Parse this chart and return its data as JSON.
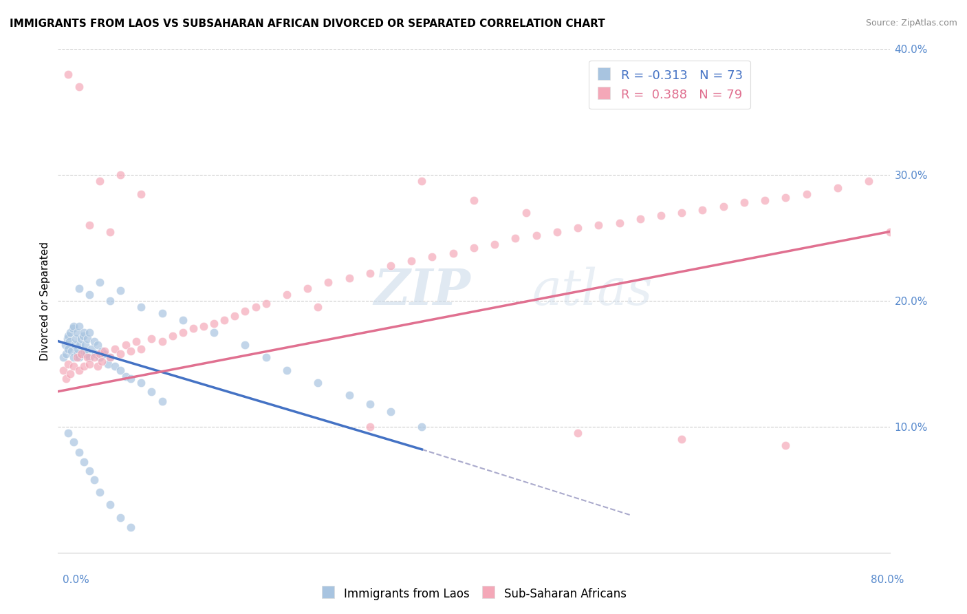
{
  "title": "IMMIGRANTS FROM LAOS VS SUBSAHARAN AFRICAN DIVORCED OR SEPARATED CORRELATION CHART",
  "source": "Source: ZipAtlas.com",
  "ylabel": "Divorced or Separated",
  "legend_labels": [
    "Immigrants from Laos",
    "Sub-Saharan Africans"
  ],
  "blue_R": "-0.313",
  "blue_N": "73",
  "pink_R": "0.388",
  "pink_N": "79",
  "blue_color": "#a8c4e0",
  "pink_color": "#f4a8b8",
  "blue_line_color": "#4472c4",
  "pink_line_color": "#e07090",
  "watermark_zip": "ZIP",
  "watermark_atlas": "atlas",
  "xlim": [
    0.0,
    0.8
  ],
  "ylim": [
    0.0,
    0.4
  ],
  "yticks": [
    0.1,
    0.2,
    0.3,
    0.4
  ],
  "blue_trend_x0": 0.0,
  "blue_trend_y0": 0.168,
  "blue_trend_x1": 0.35,
  "blue_trend_y1": 0.082,
  "blue_trend_dash_x1": 0.55,
  "blue_trend_dash_y1": 0.03,
  "pink_trend_x0": 0.0,
  "pink_trend_y0": 0.128,
  "pink_trend_x1": 0.8,
  "pink_trend_y1": 0.255,
  "blue_scatter_x": [
    0.005,
    0.007,
    0.008,
    0.009,
    0.01,
    0.01,
    0.011,
    0.012,
    0.013,
    0.014,
    0.015,
    0.015,
    0.016,
    0.017,
    0.018,
    0.018,
    0.019,
    0.02,
    0.02,
    0.021,
    0.022,
    0.023,
    0.024,
    0.025,
    0.025,
    0.026,
    0.027,
    0.028,
    0.03,
    0.03,
    0.032,
    0.035,
    0.036,
    0.038,
    0.04,
    0.042,
    0.045,
    0.048,
    0.05,
    0.055,
    0.06,
    0.065,
    0.07,
    0.08,
    0.09,
    0.1,
    0.02,
    0.03,
    0.04,
    0.05,
    0.06,
    0.08,
    0.1,
    0.12,
    0.15,
    0.18,
    0.2,
    0.22,
    0.25,
    0.28,
    0.3,
    0.32,
    0.35,
    0.01,
    0.015,
    0.02,
    0.025,
    0.03,
    0.035,
    0.04,
    0.05,
    0.06,
    0.07
  ],
  "blue_scatter_y": [
    0.155,
    0.165,
    0.158,
    0.17,
    0.162,
    0.172,
    0.168,
    0.175,
    0.16,
    0.178,
    0.155,
    0.18,
    0.165,
    0.17,
    0.158,
    0.175,
    0.162,
    0.155,
    0.18,
    0.165,
    0.17,
    0.158,
    0.172,
    0.16,
    0.175,
    0.165,
    0.158,
    0.17,
    0.155,
    0.175,
    0.162,
    0.168,
    0.158,
    0.165,
    0.155,
    0.16,
    0.158,
    0.15,
    0.155,
    0.148,
    0.145,
    0.14,
    0.138,
    0.135,
    0.128,
    0.12,
    0.21,
    0.205,
    0.215,
    0.2,
    0.208,
    0.195,
    0.19,
    0.185,
    0.175,
    0.165,
    0.155,
    0.145,
    0.135,
    0.125,
    0.118,
    0.112,
    0.1,
    0.095,
    0.088,
    0.08,
    0.072,
    0.065,
    0.058,
    0.048,
    0.038,
    0.028,
    0.02
  ],
  "pink_scatter_x": [
    0.005,
    0.008,
    0.01,
    0.012,
    0.015,
    0.018,
    0.02,
    0.022,
    0.025,
    0.028,
    0.03,
    0.035,
    0.038,
    0.04,
    0.042,
    0.045,
    0.05,
    0.055,
    0.06,
    0.065,
    0.07,
    0.075,
    0.08,
    0.09,
    0.1,
    0.11,
    0.12,
    0.13,
    0.14,
    0.15,
    0.16,
    0.17,
    0.18,
    0.19,
    0.2,
    0.22,
    0.24,
    0.26,
    0.28,
    0.3,
    0.32,
    0.34,
    0.36,
    0.38,
    0.4,
    0.42,
    0.44,
    0.46,
    0.48,
    0.5,
    0.52,
    0.54,
    0.56,
    0.58,
    0.6,
    0.62,
    0.64,
    0.66,
    0.68,
    0.7,
    0.72,
    0.75,
    0.78,
    0.35,
    0.4,
    0.45,
    0.03,
    0.05,
    0.08,
    0.01,
    0.02,
    0.04,
    0.06,
    0.25,
    0.3,
    0.5,
    0.6,
    0.7,
    0.8
  ],
  "pink_scatter_y": [
    0.145,
    0.138,
    0.15,
    0.142,
    0.148,
    0.155,
    0.145,
    0.158,
    0.148,
    0.155,
    0.15,
    0.155,
    0.148,
    0.158,
    0.152,
    0.16,
    0.155,
    0.162,
    0.158,
    0.165,
    0.16,
    0.168,
    0.162,
    0.17,
    0.168,
    0.172,
    0.175,
    0.178,
    0.18,
    0.182,
    0.185,
    0.188,
    0.192,
    0.195,
    0.198,
    0.205,
    0.21,
    0.215,
    0.218,
    0.222,
    0.228,
    0.232,
    0.235,
    0.238,
    0.242,
    0.245,
    0.25,
    0.252,
    0.255,
    0.258,
    0.26,
    0.262,
    0.265,
    0.268,
    0.27,
    0.272,
    0.275,
    0.278,
    0.28,
    0.282,
    0.285,
    0.29,
    0.295,
    0.295,
    0.28,
    0.27,
    0.26,
    0.255,
    0.285,
    0.38,
    0.37,
    0.295,
    0.3,
    0.195,
    0.1,
    0.095,
    0.09,
    0.085,
    0.255
  ]
}
